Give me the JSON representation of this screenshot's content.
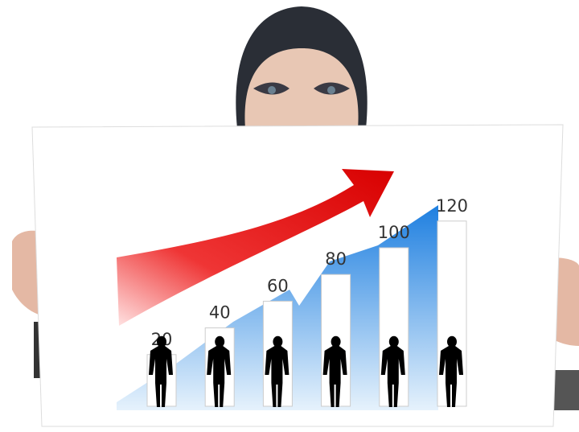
{
  "chart_data": {
    "type": "bar",
    "categories": [
      null,
      null,
      null,
      null,
      null,
      null
    ],
    "values": [
      20,
      40,
      60,
      80,
      100,
      120
    ],
    "color": "#ffffff"
  }
}
